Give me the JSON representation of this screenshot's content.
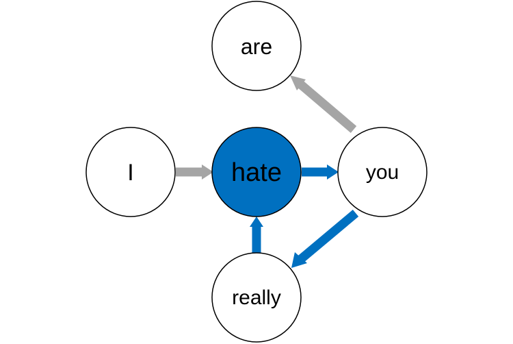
{
  "colors": {
    "highlight_fill": "#0070C0",
    "blue_arrow": "#0070C0",
    "gray_arrow": "#A5A5A5",
    "node_fill": "#FFFFFF",
    "node_stroke": "#000000"
  },
  "nodes": {
    "are": {
      "label": "are"
    },
    "i": {
      "label": "I"
    },
    "hate": {
      "label": "hate",
      "highlighted": true
    },
    "you": {
      "label": "you"
    },
    "really": {
      "label": "really"
    }
  },
  "edges": [
    {
      "from": "I",
      "to": "hate",
      "color": "gray"
    },
    {
      "from": "hate",
      "to": "you",
      "color": "blue"
    },
    {
      "from": "you",
      "to": "are",
      "color": "gray"
    },
    {
      "from": "you",
      "to": "really",
      "color": "blue"
    },
    {
      "from": "really",
      "to": "hate",
      "color": "blue"
    }
  ]
}
